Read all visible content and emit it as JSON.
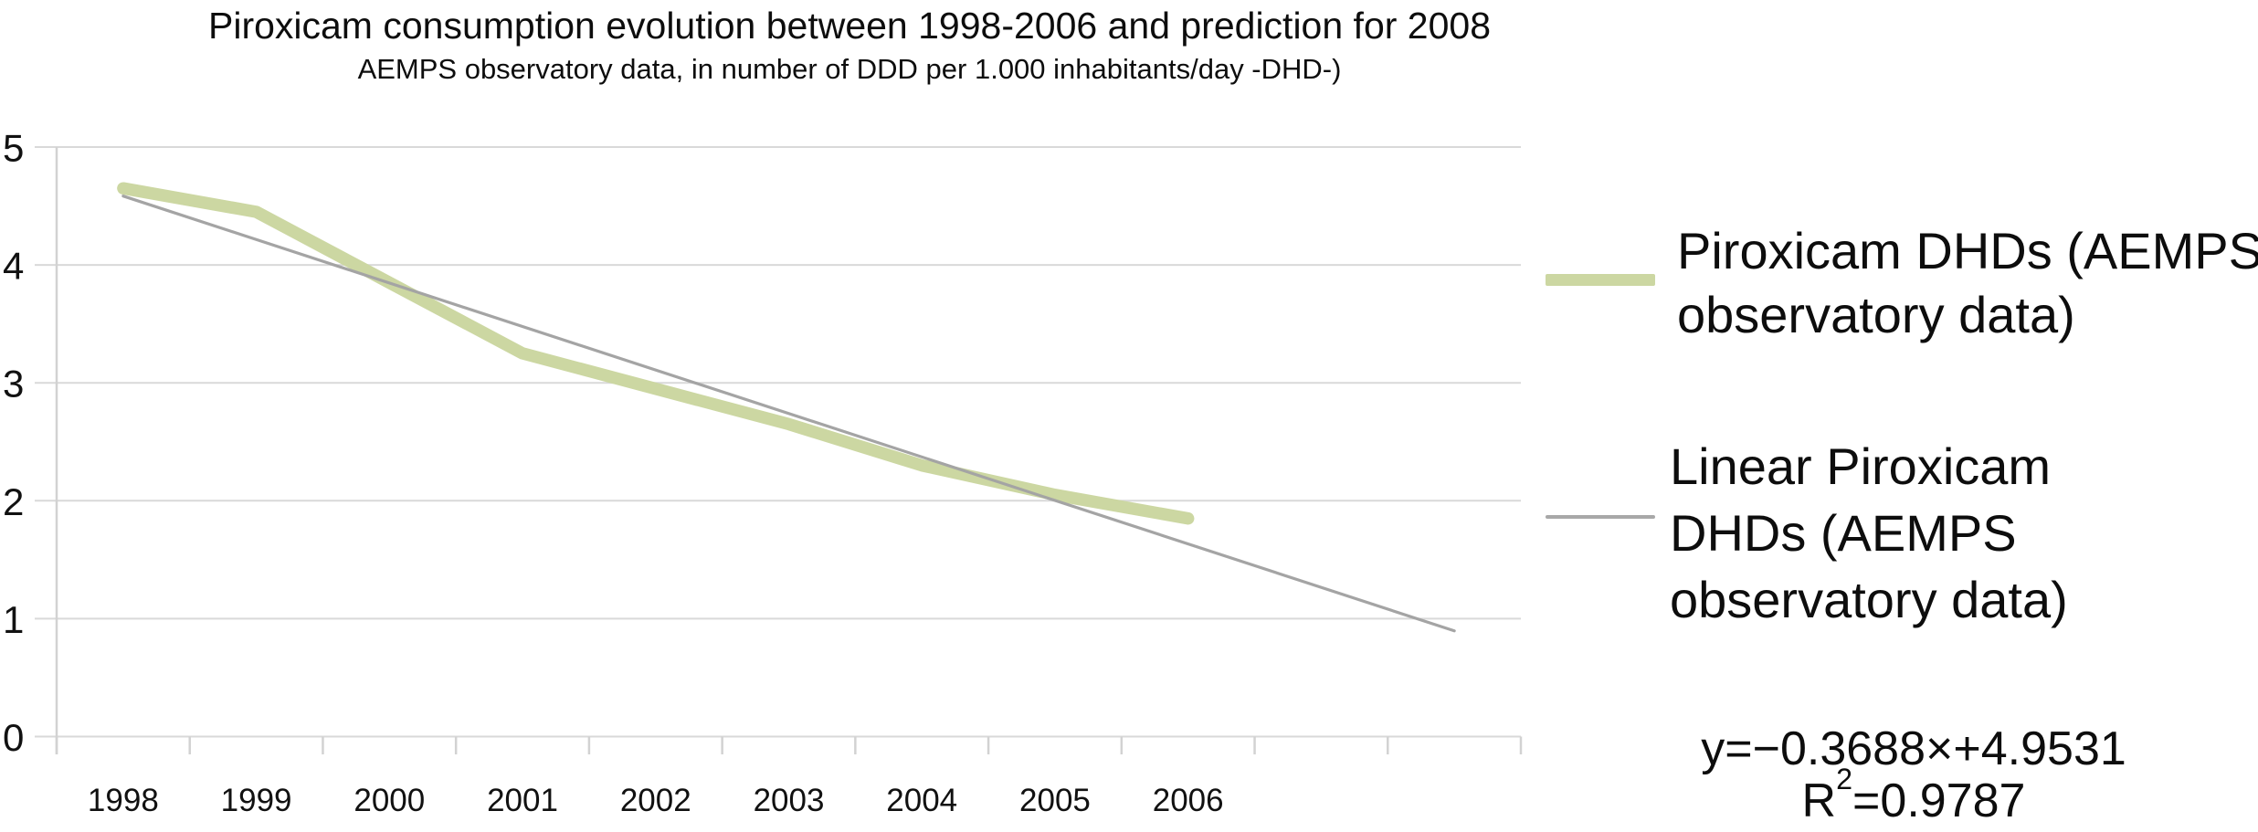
{
  "header": {
    "title": "Piroxicam consumption evolution between 1998-2006 and prediction for 2008",
    "subtitle": "AEMPS observatory data, in number of DDD per 1.000 inhabitants/day -DHD-)"
  },
  "legend": {
    "position": "right",
    "items": [
      {
        "id": "piroxicam-dhds",
        "swatch_style": "thick-line",
        "swatch_color": "#ccd7a2",
        "lines": [
          "Piroxicam DHDs (AEMPS",
          "observatory data)"
        ]
      },
      {
        "id": "linear-piroxicam-dhds",
        "swatch_style": "thin-line",
        "swatch_color": "#a8a8a8",
        "lines": [
          "Linear Piroxicam",
          "DHDs (AEMPS",
          "observatory data)"
        ]
      }
    ]
  },
  "equation": {
    "formula": "y=−0.3688×+4.9531",
    "r_base": "R",
    "r_exponent": "2",
    "r_rest": "=0.9787"
  },
  "chart_data": {
    "type": "line",
    "title": "Piroxicam consumption evolution between 1998-2006 and prediction for 2008",
    "subtitle": "AEMPS observatory data, in number of DDD per 1.000 inhabitants/day -DHD-)",
    "categories": [
      "1998",
      "1999",
      "2000",
      "2001",
      "2002",
      "2003",
      "2004",
      "2005",
      "2006"
    ],
    "series": [
      {
        "name": "Piroxicam DHDs (AEMPS observatory data)",
        "kind": "data",
        "values": [
          4.65,
          4.45,
          3.85,
          3.25,
          2.95,
          2.65,
          2.3,
          2.05,
          1.85
        ],
        "color": "#ccd7a2",
        "stroke_width": 13.5
      },
      {
        "name": "Linear Piroxicam DHDs (AEMPS observatory data)",
        "kind": "trendline",
        "slope": -0.3688,
        "intercept": 4.9531,
        "x_start": 1,
        "x_end": 11,
        "color": "#a4a4a4",
        "stroke_width": 3.2,
        "equation": "y=−0.3688×+4.9531",
        "r_squared": 0.9787
      }
    ],
    "ylim": [
      0,
      5
    ],
    "y_ticks": [
      0,
      1,
      2,
      3,
      4,
      5
    ],
    "x_slots": 11,
    "grid": true,
    "legend_position": "right",
    "grid_color": "#d9d9d9",
    "axis_color": "#d2d2d2",
    "tick_label_color": "#111111"
  }
}
